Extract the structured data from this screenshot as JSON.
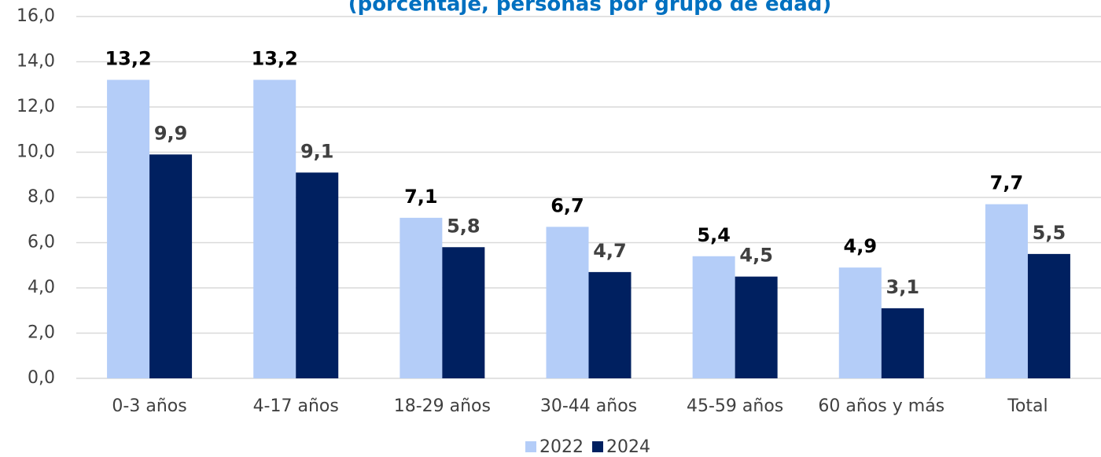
{
  "chart_data": {
    "type": "bar",
    "title": "(porcentaje, personas por grupo de edad)",
    "categories": [
      "0-3 años",
      "4-17 años",
      "18-29 años",
      "30-44 años",
      "45-59 años",
      "60 años y más",
      "Total"
    ],
    "series": [
      {
        "name": "2022",
        "color": "#b4cdf8",
        "label_color": "#000000",
        "values": [
          13.2,
          13.2,
          7.1,
          6.7,
          5.4,
          4.9,
          7.7
        ],
        "value_labels": [
          "13,2",
          "13,2",
          "7,1",
          "6,7",
          "5,4",
          "4,9",
          "7,7"
        ]
      },
      {
        "name": "2024",
        "color": "#002060",
        "label_color": "#404040",
        "values": [
          9.9,
          9.1,
          5.8,
          4.7,
          4.5,
          3.1,
          5.5
        ],
        "value_labels": [
          "9,9",
          "9,1",
          "5,8",
          "4,7",
          "4,5",
          "3,1",
          "5,5"
        ]
      }
    ],
    "ylim": [
      0,
      16
    ],
    "yticks": [
      {
        "value": 0,
        "label": "0,0"
      },
      {
        "value": 2,
        "label": "2,0"
      },
      {
        "value": 4,
        "label": "4,0"
      },
      {
        "value": 6,
        "label": "6,0"
      },
      {
        "value": 8,
        "label": "8,0"
      },
      {
        "value": 10,
        "label": "10,0"
      },
      {
        "value": 12,
        "label": "12,0"
      },
      {
        "value": 14,
        "label": "14,0"
      },
      {
        "value": 16,
        "label": "16,0"
      }
    ],
    "grid": true,
    "legend": "bottom"
  }
}
